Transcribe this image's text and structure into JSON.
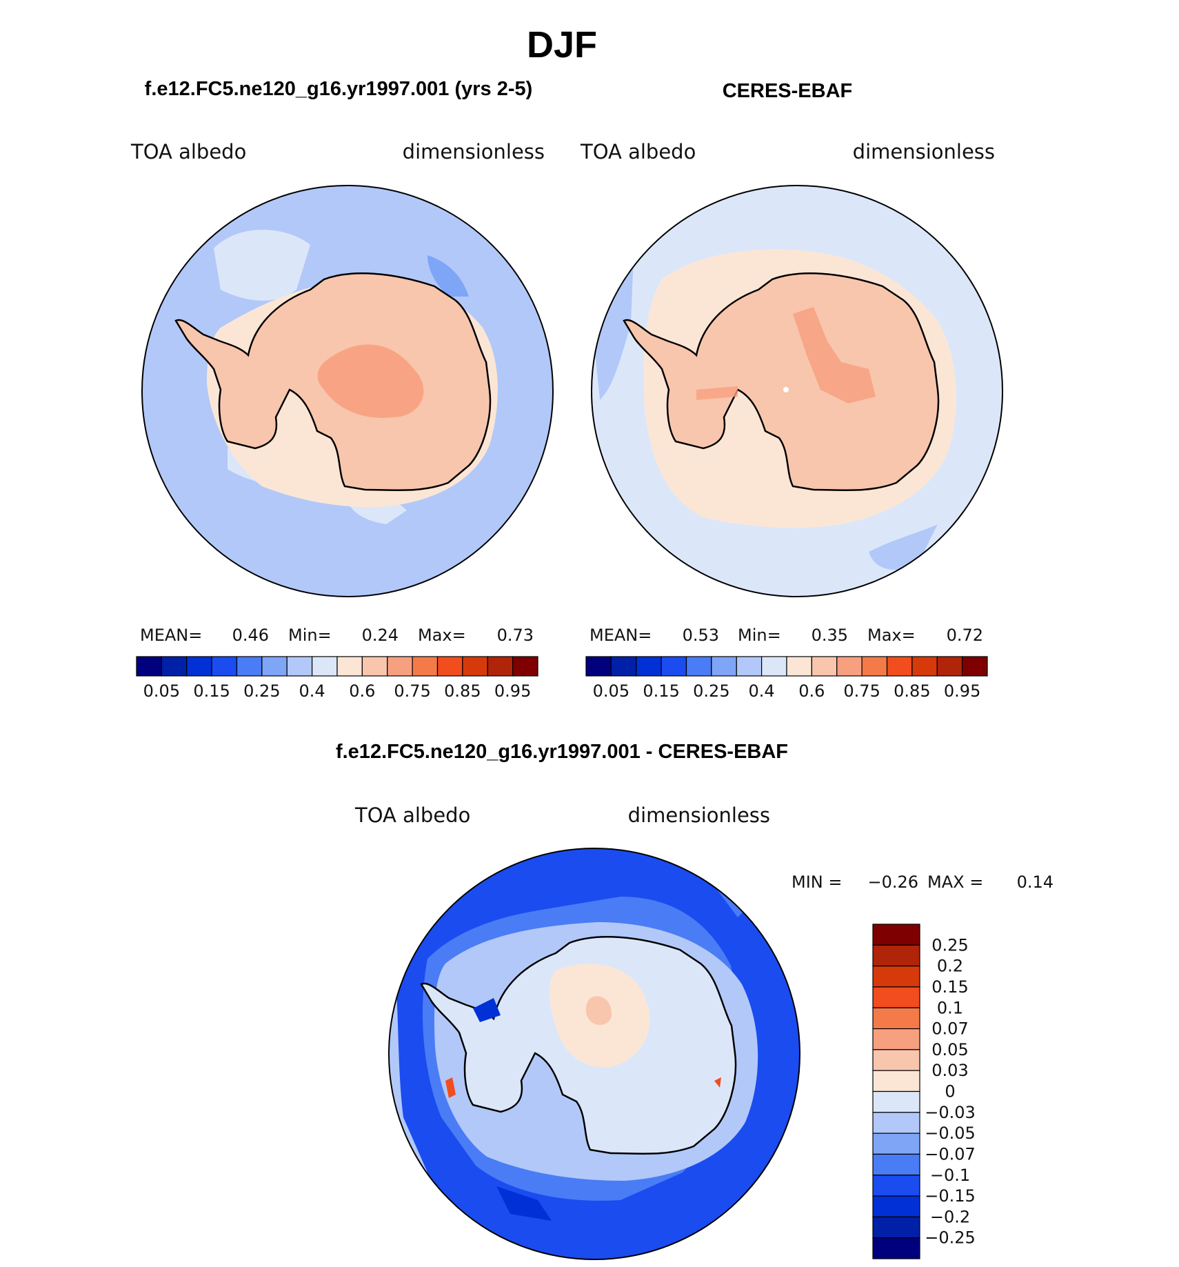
{
  "figure": {
    "title": "DJF"
  },
  "panels": [
    {
      "id": "model",
      "case_title": "f.e12.FC5.ne120_g16.yr1997.001 (yrs 2-5)",
      "variable": "TOA albedo",
      "units": "dimensionless",
      "stats": {
        "mean_label": "MEAN=",
        "mean": "0.46",
        "min_label": "Min=",
        "min": "0.24",
        "max_label": "Max=",
        "max": "0.73"
      }
    },
    {
      "id": "obs",
      "case_title": "CERES-EBAF",
      "variable": "TOA albedo",
      "units": "dimensionless",
      "stats": {
        "mean_label": "MEAN=",
        "mean": "0.53",
        "min_label": "Min=",
        "min": "0.35",
        "max_label": "Max=",
        "max": "0.72"
      }
    }
  ],
  "difference": {
    "case_title": "f.e12.FC5.ne120_g16.yr1997.001 - CERES-EBAF",
    "variable": "TOA albedo",
    "units": "dimensionless",
    "stats": {
      "min_label": "MIN =",
      "min": "−0.26",
      "max_label": "MAX =",
      "max": "0.14"
    }
  },
  "chart_data": [
    {
      "type": "heatmap",
      "region": "Antarctica (south polar stereographic)",
      "colorbar": {
        "orientation": "horizontal",
        "tick_labels": [
          "0.05",
          "0.15",
          "0.25",
          "0.4",
          "0.6",
          "0.75",
          "0.85",
          "0.95"
        ],
        "colors": [
          "#00007f",
          "#0020a8",
          "#0030d6",
          "#1a4cf0",
          "#4a7cf5",
          "#7fa5f7",
          "#b2c8f9",
          "#dbe7f9",
          "#fbe6d6",
          "#f8c6ad",
          "#f7a080",
          "#f57a4a",
          "#f24d1e",
          "#d63a0a",
          "#b0240a",
          "#7e0000"
        ]
      }
    },
    {
      "type": "heatmap",
      "region": "difference",
      "colorbar": {
        "orientation": "vertical",
        "tick_labels": [
          "0.25",
          "0.2",
          "0.15",
          "0.1",
          "0.07",
          "0.05",
          "0.03",
          "0",
          "−0.03",
          "−0.05",
          "−0.07",
          "−0.1",
          "−0.15",
          "−0.2",
          "−0.25"
        ],
        "colors": [
          "#7e0000",
          "#b0240a",
          "#d63a0a",
          "#f24d1e",
          "#f57a4a",
          "#f7a080",
          "#f8c6ad",
          "#fbe6d6",
          "#dbe7f9",
          "#b2c8f9",
          "#7fa5f7",
          "#4a7cf5",
          "#1a4cf0",
          "#0030d6",
          "#0020a8",
          "#00007f"
        ]
      }
    }
  ]
}
